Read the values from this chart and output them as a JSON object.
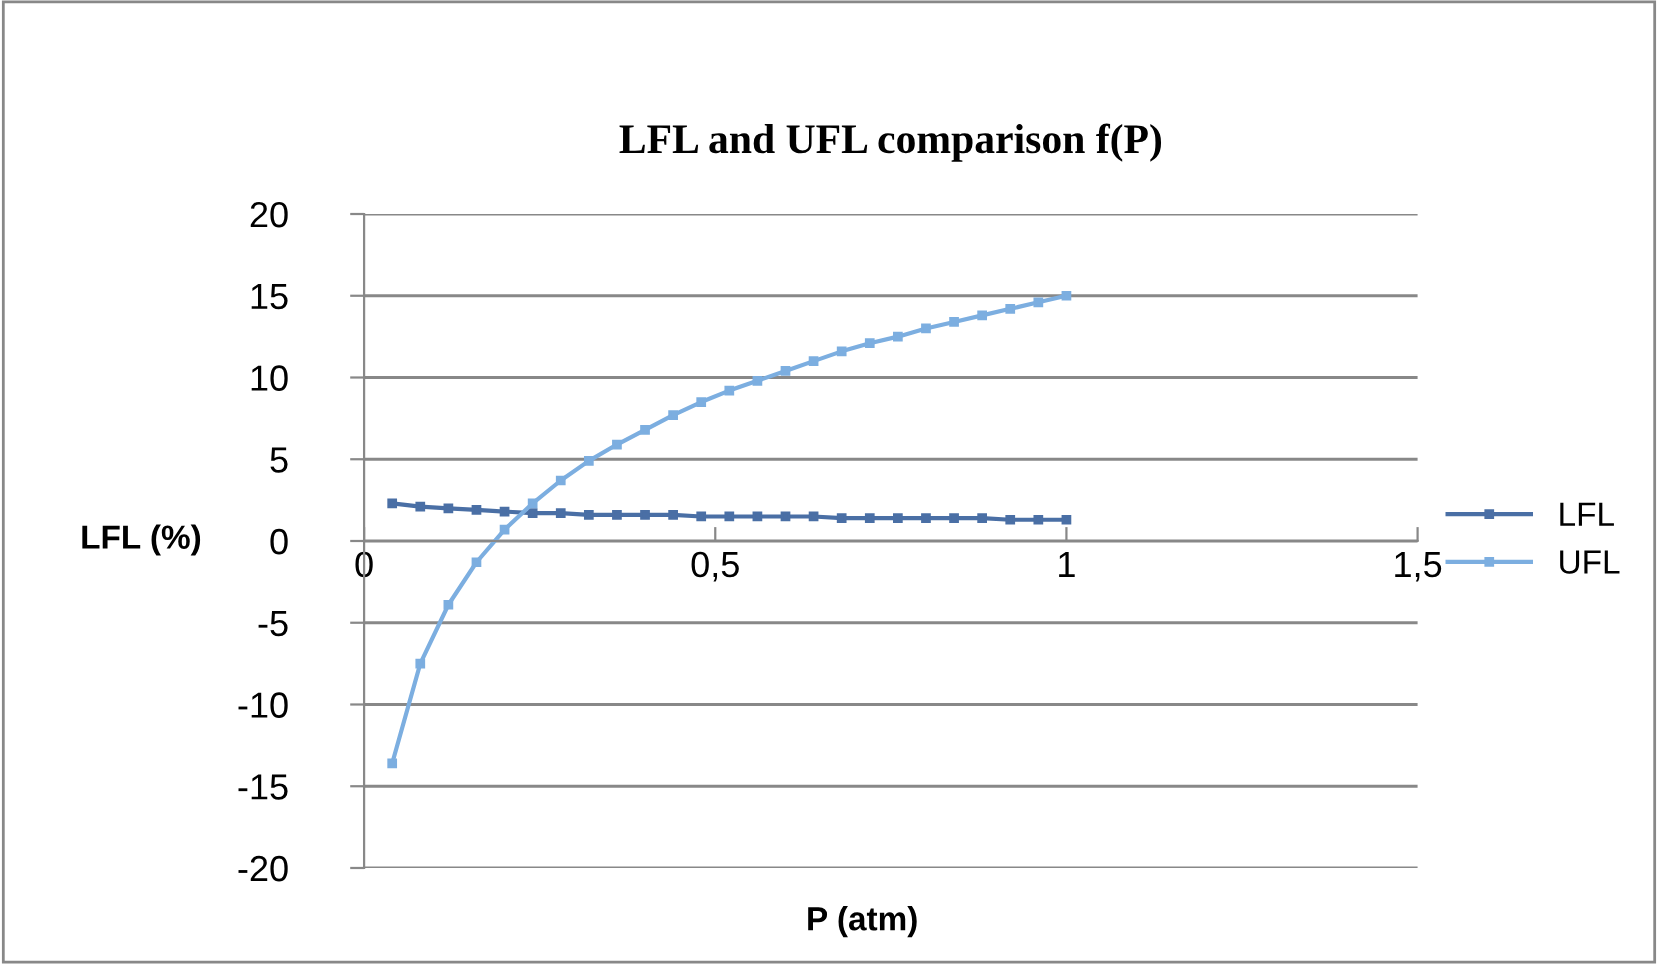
{
  "chart_data": {
    "type": "line",
    "title": "LFL and UFL comparison f(P)",
    "xlabel": "P (atm)",
    "ylabel": "LFL (%)",
    "x": [
      0.04,
      0.08,
      0.12,
      0.16,
      0.2,
      0.24,
      0.28,
      0.32,
      0.36,
      0.4,
      0.44,
      0.48,
      0.52,
      0.56,
      0.6,
      0.64,
      0.68,
      0.72,
      0.76,
      0.8,
      0.84,
      0.88,
      0.92,
      0.96,
      1.0
    ],
    "series": [
      {
        "name": "LFL",
        "color": "#4a6fa5",
        "values": [
          2.3,
          2.1,
          2.0,
          1.9,
          1.8,
          1.7,
          1.7,
          1.6,
          1.6,
          1.6,
          1.6,
          1.5,
          1.5,
          1.5,
          1.5,
          1.5,
          1.4,
          1.4,
          1.4,
          1.4,
          1.4,
          1.4,
          1.3,
          1.3,
          1.3
        ]
      },
      {
        "name": "UFL",
        "color": "#7caee0",
        "values": [
          -13.6,
          -7.5,
          -3.9,
          -1.3,
          0.7,
          2.3,
          3.7,
          4.9,
          5.9,
          6.8,
          7.7,
          8.5,
          9.2,
          9.8,
          10.4,
          11.0,
          11.6,
          12.1,
          12.5,
          13.0,
          13.4,
          13.8,
          14.2,
          14.6,
          15.0
        ]
      }
    ],
    "xlim": [
      0,
      1.5
    ],
    "xticks": [
      0,
      {
        "value": 0.5,
        "label": "0,5"
      },
      1,
      {
        "value": 1.5,
        "label": "1,5"
      }
    ],
    "ylim": [
      -20,
      20
    ],
    "yticks": [
      -20,
      -15,
      -10,
      -5,
      0,
      5,
      10,
      15,
      20
    ],
    "grid": "y",
    "legend": "right",
    "marker": "square",
    "line_style": "solid"
  }
}
